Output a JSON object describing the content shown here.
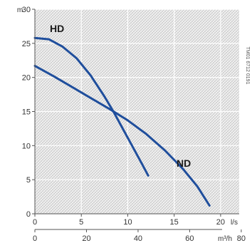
{
  "chart_data": {
    "type": "line",
    "title": "",
    "y_unit": "m",
    "x_unit_top": "l/s",
    "x_unit_bottom": "m³/h",
    "grid": true,
    "side_code": "TM01 6712 0191 ",
    "y_axis": {
      "min": 0,
      "max": 30,
      "ticks": [
        "0",
        "5",
        "10",
        "15",
        "20",
        "25",
        "30"
      ]
    },
    "x_axis_top": {
      "min": 0,
      "max": 22,
      "ticks": [
        "0",
        "5",
        "10",
        "15",
        "20"
      ],
      "tick_values": [
        0,
        5,
        10,
        15,
        20
      ]
    },
    "x_axis_bottom": {
      "ticks": [
        "0",
        "20",
        "40",
        "60",
        "80"
      ],
      "tick_values": [
        0,
        20,
        40,
        60,
        80
      ]
    },
    "series": [
      {
        "name": "HD",
        "color": "#1f4e9c",
        "points": [
          [
            0,
            25.8
          ],
          [
            1.5,
            25.6
          ],
          [
            3,
            24.5
          ],
          [
            4.5,
            22.8
          ],
          [
            6,
            20.3
          ],
          [
            7.5,
            17.2
          ],
          [
            8.5,
            14.9
          ],
          [
            9.5,
            12.4
          ],
          [
            10.5,
            9.9
          ],
          [
            11.5,
            7.4
          ],
          [
            12.2,
            5.6
          ]
        ]
      },
      {
        "name": "ND",
        "color": "#1f4e9c",
        "points": [
          [
            0,
            21.7
          ],
          [
            2,
            20.2
          ],
          [
            4,
            18.6
          ],
          [
            6,
            17.0
          ],
          [
            8,
            15.4
          ],
          [
            10,
            13.7
          ],
          [
            12,
            11.7
          ],
          [
            14,
            9.3
          ],
          [
            16,
            6.5
          ],
          [
            17.5,
            4.0
          ],
          [
            18.8,
            1.2
          ]
        ]
      }
    ]
  }
}
